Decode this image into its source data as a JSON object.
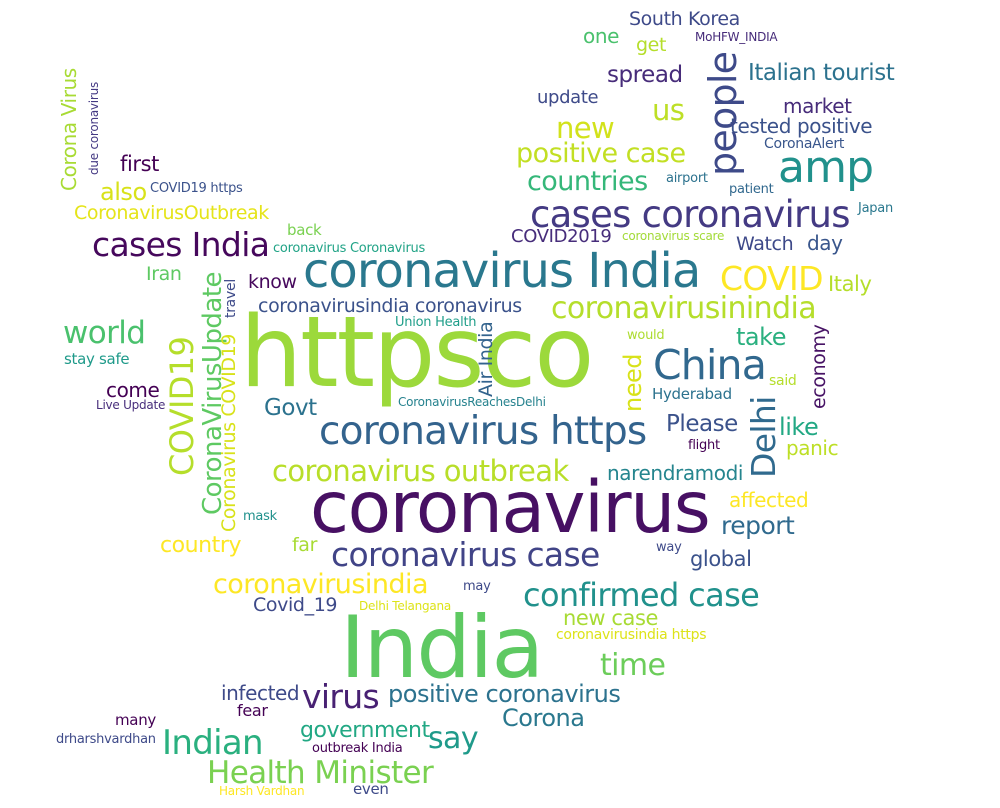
{
  "words": [
    {
      "text": "South Korea",
      "color": "#3e4a89"
    },
    {
      "text": "one",
      "color": "#4ac16d"
    },
    {
      "text": "get",
      "color": "#b5de2b"
    },
    {
      "text": "MoHFW_INDIA",
      "color": "#472c7a"
    },
    {
      "text": "spread",
      "color": "#472c7a"
    },
    {
      "text": "people",
      "color": "#3e4a89"
    },
    {
      "text": "Italian tourist",
      "color": "#2c728e"
    },
    {
      "text": "update",
      "color": "#3e4a89"
    },
    {
      "text": "us",
      "color": "#bddf26"
    },
    {
      "text": "market",
      "color": "#472c7a"
    },
    {
      "text": "new",
      "color": "#d2e21b"
    },
    {
      "text": "tested positive",
      "color": "#3b528b"
    },
    {
      "text": "positive case",
      "color": "#c2df23"
    },
    {
      "text": "CoronaAlert",
      "color": "#39568c"
    },
    {
      "text": "amp",
      "color": "#21918c"
    },
    {
      "text": "first",
      "color": "#440154"
    },
    {
      "text": "countries",
      "color": "#35b779"
    },
    {
      "text": "airport",
      "color": "#2c728e"
    },
    {
      "text": "also",
      "color": "#d8e219"
    },
    {
      "text": "COVID19 https",
      "color": "#3b528b"
    },
    {
      "text": "patient",
      "color": "#31688e"
    },
    {
      "text": "cases coronavirus",
      "color": "#443a83"
    },
    {
      "text": "Japan",
      "color": "#2a788e"
    },
    {
      "text": "CoronavirusOutbreak",
      "color": "#e5e419"
    },
    {
      "text": "back",
      "color": "#7ad151"
    },
    {
      "text": "COVID2019",
      "color": "#472d7b"
    },
    {
      "text": "coronavirus scare",
      "color": "#a2da37"
    },
    {
      "text": "day",
      "color": "#39568c"
    },
    {
      "text": "cases India",
      "color": "#46085c"
    },
    {
      "text": "coronavirus Coronavirus",
      "color": "#20a386"
    },
    {
      "text": "Watch",
      "color": "#3e4989"
    },
    {
      "text": "coronavirus India",
      "color": "#2a788e"
    },
    {
      "text": "Iran",
      "color": "#5ec962"
    },
    {
      "text": "COVID",
      "color": "#fde725"
    },
    {
      "text": "know",
      "color": "#46085c"
    },
    {
      "text": "Italy",
      "color": "#b5de2b"
    },
    {
      "text": "coronavirusindia coronavirus",
      "color": "#3b528b"
    },
    {
      "text": "coronavirusinindia",
      "color": "#b5de2b"
    },
    {
      "text": "world",
      "color": "#4ac16d"
    },
    {
      "text": "Union Health",
      "color": "#1f9e89"
    },
    {
      "text": "take",
      "color": "#2ab07f"
    },
    {
      "text": "httpsco",
      "color": "#9cd93b"
    },
    {
      "text": "would",
      "color": "#addc30"
    },
    {
      "text": "stay safe",
      "color": "#1f9a8a"
    },
    {
      "text": "China",
      "color": "#31688e"
    },
    {
      "text": "said",
      "color": "#b5de2b"
    },
    {
      "text": "come",
      "color": "#440154"
    },
    {
      "text": "Hyderabad",
      "color": "#2c728e"
    },
    {
      "text": "Live Update",
      "color": "#472d7b"
    },
    {
      "text": "CoronavirusReachesDelhi",
      "color": "#26828e"
    },
    {
      "text": "Govt",
      "color": "#2c728e"
    },
    {
      "text": "coronavirus https",
      "color": "#33638d"
    },
    {
      "text": "Please",
      "color": "#3b528b"
    },
    {
      "text": "like",
      "color": "#22a884"
    },
    {
      "text": "flight",
      "color": "#440154"
    },
    {
      "text": "panic",
      "color": "#bddf26"
    },
    {
      "text": "coronavirus outbreak",
      "color": "#b8de29"
    },
    {
      "text": "narendramodi",
      "color": "#25858e"
    },
    {
      "text": "affected",
      "color": "#fde725"
    },
    {
      "text": "mask",
      "color": "#21918c"
    },
    {
      "text": "coronavirus",
      "color": "#471063"
    },
    {
      "text": "report",
      "color": "#306a8e"
    },
    {
      "text": "country",
      "color": "#fde725"
    },
    {
      "text": "far",
      "color": "#a8db34"
    },
    {
      "text": "coronavirus case",
      "color": "#414487"
    },
    {
      "text": "way",
      "color": "#3e4a89"
    },
    {
      "text": "global",
      "color": "#3b528b"
    },
    {
      "text": "coronavirusindia",
      "color": "#fde725"
    },
    {
      "text": "may",
      "color": "#3e4a89"
    },
    {
      "text": "confirmed case",
      "color": "#21918c"
    },
    {
      "text": "Covid_19",
      "color": "#3e4a89"
    },
    {
      "text": "Delhi Telangana",
      "color": "#dde318"
    },
    {
      "text": "new case",
      "color": "#a8db34"
    },
    {
      "text": "India",
      "color": "#5ec962"
    },
    {
      "text": "coronavirusindia https",
      "color": "#dde318"
    },
    {
      "text": "time",
      "color": "#6ccd5a"
    },
    {
      "text": "infected",
      "color": "#3e4a89"
    },
    {
      "text": "virus",
      "color": "#482173"
    },
    {
      "text": "positive coronavirus",
      "color": "#2c728e"
    },
    {
      "text": "fear",
      "color": "#440154"
    },
    {
      "text": "Corona",
      "color": "#2a788e"
    },
    {
      "text": "many",
      "color": "#440154"
    },
    {
      "text": "government",
      "color": "#22a884"
    },
    {
      "text": "say",
      "color": "#1f9a8a"
    },
    {
      "text": "drharshvardhan",
      "color": "#3e4a89"
    },
    {
      "text": "outbreak India",
      "color": "#440154"
    },
    {
      "text": "Indian",
      "color": "#2ab07f"
    },
    {
      "text": "Health Minister",
      "color": "#7ad151"
    },
    {
      "text": "Harsh Vardhan",
      "color": "#fde725"
    },
    {
      "text": "even",
      "color": "#3e4a89"
    },
    {
      "text": "Corona Virus",
      "color": "#a8db34"
    },
    {
      "text": "due coronavirus",
      "color": "#443983"
    },
    {
      "text": "CoronaVirusUpdate",
      "color": "#5ec962"
    },
    {
      "text": "COVID19",
      "color": "#b5de2b"
    },
    {
      "text": "Coronavirus COVID19",
      "color": "#d8e219"
    },
    {
      "text": "travel",
      "color": "#3e4a89"
    },
    {
      "text": "Air India",
      "color": "#33638d"
    },
    {
      "text": "need",
      "color": "#d8e219"
    },
    {
      "text": "Delhi",
      "color": "#306a8e"
    },
    {
      "text": "economy",
      "color": "#471365"
    }
  ]
}
